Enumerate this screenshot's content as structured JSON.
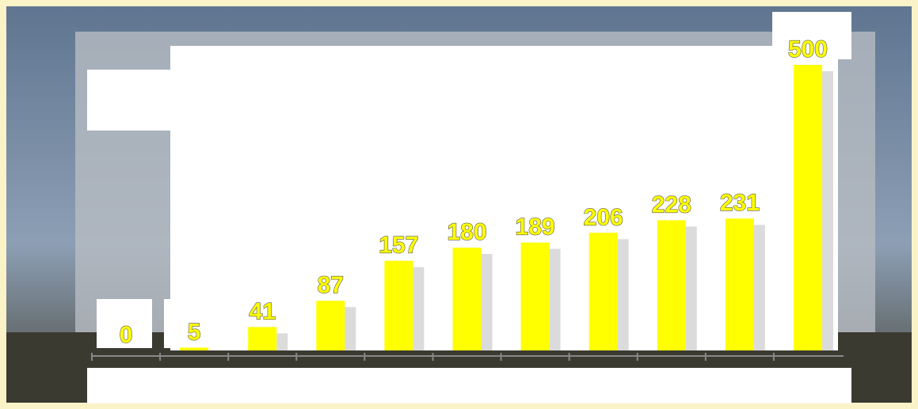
{
  "chart_data": {
    "type": "bar",
    "categories": [
      null,
      null,
      null,
      null,
      null,
      null,
      null,
      null,
      null,
      null,
      null
    ],
    "values": [
      0,
      5,
      41,
      87,
      157,
      180,
      189,
      206,
      228,
      231,
      500
    ],
    "color": "#ffff00",
    "ylim": [
      0,
      500
    ]
  }
}
